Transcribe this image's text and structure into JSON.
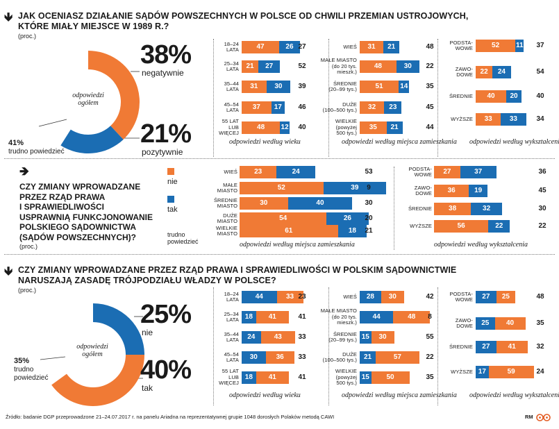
{
  "colors": {
    "orange": "#f07a35",
    "blue": "#1b6db3",
    "text": "#1a1a1a"
  },
  "q1": {
    "arrow": "🡻",
    "title_line1": "JAK OCENIASZ DZIAŁANIE SĄDÓW POWSZECHNYCH W POLSCE OD CHWILI PRZEMIAN USTROJOWYCH,",
    "title_line2": "KTÓRE MIAŁY MIEJSCE W 1989 R.?",
    "proc": "(proc.)",
    "donut_label_line1": "odpowiedzi",
    "donut_label_line2": "ogółem",
    "negative_pct": "38%",
    "negative_label": "negatywnie",
    "positive_pct": "21%",
    "positive_label": "pozytywnie",
    "hard_pct": "41%",
    "hard_label": "trudno powiedzieć"
  },
  "q2": {
    "arrow": "🡺",
    "title_lines": [
      "CZY ZMIANY WPROWADZANE",
      "PRZEZ RZĄD PRAWA",
      "I SPRAWIEDLIWOŚCI",
      "USPRAWNIĄ FUNKCJONOWANIE",
      "POLSKIEGO SĄDOWNICTWA",
      "(SĄDÓW POWSZECHNYCH)?"
    ],
    "proc": "(proc.)",
    "legend_nie": "nie",
    "legend_tak": "tak",
    "legend_hard_line1": "trudno",
    "legend_hard_line2": "powiedzieć"
  },
  "q3": {
    "arrow": "🡻",
    "title_line1": "CZY ZMIANY WPROWADZANE PRZEZ RZĄD PRAWA I SPRAWIEDLIWOŚCI W POLSKIM SĄDOWNICTWIE",
    "title_line2": "NARUSZAJĄ ZASADĘ TRÓJPODZIAŁU WŁADZY W POLSCE?",
    "proc": "(proc.)",
    "donut_label_line1": "odpowiedzi",
    "donut_label_line2": "ogółem",
    "nie_pct": "25%",
    "nie_label": "nie",
    "tak_pct": "40%",
    "tak_label": "tak",
    "hard_pct": "35%",
    "hard_label_line1": "trudno",
    "hard_label_line2": "powiedzieć"
  },
  "footer": {
    "source": "Źródło: badanie DGP przeprowadzone 21–24.07.2017 r. na panelu Ariadna na reprezentatywnej grupie 1048 dorosłych Polaków metodą CAWI",
    "credit": "RM"
  },
  "chart_data": [
    {
      "id": "donut1",
      "type": "pie",
      "title": "odpowiedzi ogółem",
      "categories": [
        "negatywnie",
        "pozytywnie",
        "trudno powiedzieć"
      ],
      "values": [
        38,
        21,
        41
      ]
    },
    {
      "id": "q1_age",
      "type": "bar",
      "stacked": true,
      "caption": "odpowiedzi według wieku",
      "categories": [
        "18–24 LATA",
        "25–34 LATA",
        "35–44 LATA",
        "45–54 LATA",
        "55 LAT LUB WIĘCEJ"
      ],
      "series": [
        {
          "name": "negatywnie",
          "values": [
            47,
            21,
            31,
            37,
            48
          ]
        },
        {
          "name": "pozytywnie",
          "values": [
            26,
            27,
            30,
            17,
            12
          ]
        },
        {
          "name": "trudno powiedzieć",
          "values": [
            27,
            52,
            39,
            46,
            40
          ]
        }
      ]
    },
    {
      "id": "q1_place",
      "type": "bar",
      "stacked": true,
      "caption": "odpowiedzi według miejsca zamieszkania",
      "categories": [
        "WIEŚ",
        "MAŁE MIASTO (do 20 tys. mieszk.)",
        "ŚREDNIE (20–99 tys.)",
        "DUŻE (100–500 tys.)",
        "WIELKIE (powyżej 500 tys.)"
      ],
      "series": [
        {
          "name": "negatywnie",
          "values": [
            31,
            48,
            51,
            32,
            35
          ]
        },
        {
          "name": "pozytywnie",
          "values": [
            21,
            30,
            14,
            23,
            21
          ]
        },
        {
          "name": "trudno powiedzieć",
          "values": [
            48,
            22,
            35,
            45,
            44
          ]
        }
      ]
    },
    {
      "id": "q1_edu",
      "type": "bar",
      "stacked": true,
      "caption": "odpowiedzi według wykształcenia",
      "categories": [
        "PODSTA-WOWE",
        "ZAWO-DOWE",
        "ŚREDNIE",
        "WYŻSZE"
      ],
      "series": [
        {
          "name": "negatywnie",
          "values": [
            52,
            22,
            40,
            33
          ]
        },
        {
          "name": "pozytywnie",
          "values": [
            11,
            24,
            20,
            33
          ]
        },
        {
          "name": "trudno powiedzieć",
          "values": [
            37,
            54,
            40,
            34
          ]
        }
      ]
    },
    {
      "id": "q2_place",
      "type": "bar",
      "stacked": true,
      "caption": "odpowiedzi według miejsca zamieszkania",
      "categories": [
        "WIEŚ",
        "MAŁE MIASTO",
        "ŚREDNIE MIASTO",
        "DUŻE MIASTO",
        "WIELKIE MIASTO"
      ],
      "series": [
        {
          "name": "nie",
          "values": [
            23,
            52,
            30,
            54,
            61
          ]
        },
        {
          "name": "tak",
          "values": [
            24,
            39,
            40,
            26,
            18
          ]
        },
        {
          "name": "trudno powiedzieć",
          "values": [
            53,
            9,
            30,
            20,
            21
          ]
        }
      ]
    },
    {
      "id": "q2_edu",
      "type": "bar",
      "stacked": true,
      "caption": "odpowiedzi według wykształcenia",
      "categories": [
        "PODSTA-WOWE",
        "ZAWO-DOWE",
        "ŚREDNIE",
        "WYŻSZE"
      ],
      "series": [
        {
          "name": "nie",
          "values": [
            27,
            36,
            38,
            56
          ]
        },
        {
          "name": "tak",
          "values": [
            37,
            19,
            32,
            22
          ]
        },
        {
          "name": "trudno powiedzieć",
          "values": [
            36,
            45,
            30,
            22
          ]
        }
      ]
    },
    {
      "id": "donut3",
      "type": "pie",
      "title": "odpowiedzi ogółem",
      "categories": [
        "nie",
        "tak",
        "trudno powiedzieć"
      ],
      "values": [
        25,
        40,
        35
      ]
    },
    {
      "id": "q3_age",
      "type": "bar",
      "stacked": true,
      "caption": "odpowiedzi według wieku",
      "categories": [
        "18–24 LATA",
        "25–34 LATA",
        "35–44 LATA",
        "45–54 LATA",
        "55 LAT LUB WIĘCEJ"
      ],
      "series": [
        {
          "name": "nie",
          "values": [
            44,
            18,
            24,
            30,
            18
          ]
        },
        {
          "name": "tak",
          "values": [
            33,
            41,
            43,
            36,
            41
          ]
        },
        {
          "name": "trudno powiedzieć",
          "values": [
            23,
            41,
            33,
            33,
            41
          ]
        }
      ]
    },
    {
      "id": "q3_place",
      "type": "bar",
      "stacked": true,
      "caption": "odpowiedzi według miejsca zamieszkania",
      "categories": [
        "WIEŚ",
        "MAŁE MIASTO (do 20 tys. mieszk.)",
        "ŚREDNIE (20–99 tys.)",
        "DUŻE (100–500 tys.)",
        "WIELKIE (powyżej 500 tys.)"
      ],
      "series": [
        {
          "name": "nie",
          "values": [
            28,
            44,
            15,
            21,
            15
          ]
        },
        {
          "name": "tak",
          "values": [
            30,
            48,
            30,
            57,
            50
          ]
        },
        {
          "name": "trudno powiedzieć",
          "values": [
            42,
            8,
            55,
            22,
            35
          ]
        }
      ]
    },
    {
      "id": "q3_edu",
      "type": "bar",
      "stacked": true,
      "caption": "odpowiedzi według wykształcenia",
      "categories": [
        "PODSTA-WOWE",
        "ZAWO-DOWE",
        "ŚREDNIE",
        "WYŻSZE"
      ],
      "series": [
        {
          "name": "nie",
          "values": [
            27,
            25,
            27,
            17
          ]
        },
        {
          "name": "tak",
          "values": [
            25,
            40,
            41,
            59
          ]
        },
        {
          "name": "trudno powiedzieć",
          "values": [
            48,
            35,
            32,
            24
          ]
        }
      ]
    }
  ]
}
